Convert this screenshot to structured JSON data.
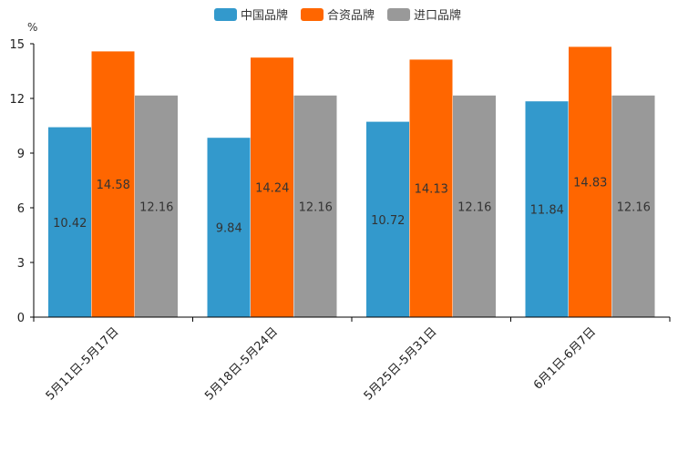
{
  "chart_data": {
    "type": "bar",
    "title": "",
    "xlabel": "",
    "ylabel": "%",
    "ylim": [
      0,
      15
    ],
    "yticks": [
      0,
      3,
      6,
      9,
      12,
      15
    ],
    "grid": false,
    "legend_position": "top-center",
    "categories": [
      "5月11日-5月17日",
      "5月18日-5月24日",
      "5月25日-5月31日",
      "6月1日-6月7日"
    ],
    "series": [
      {
        "name": "中国品牌",
        "color": "#3399cc",
        "values": [
          10.42,
          9.84,
          10.72,
          11.84
        ],
        "labels": [
          "10.42",
          "9.84",
          "10.72",
          "11.84"
        ]
      },
      {
        "name": "合资品牌",
        "color": "#ff6600",
        "values": [
          14.58,
          14.24,
          14.13,
          14.83
        ],
        "labels": [
          "14.58",
          "14.24",
          "14.13",
          "14.83"
        ]
      },
      {
        "name": "进口品牌",
        "color": "#999999",
        "values": [
          12.16,
          12.16,
          12.16,
          12.16
        ],
        "labels": [
          "12.16",
          "12.16",
          "12.16",
          "12.16"
        ]
      }
    ]
  }
}
